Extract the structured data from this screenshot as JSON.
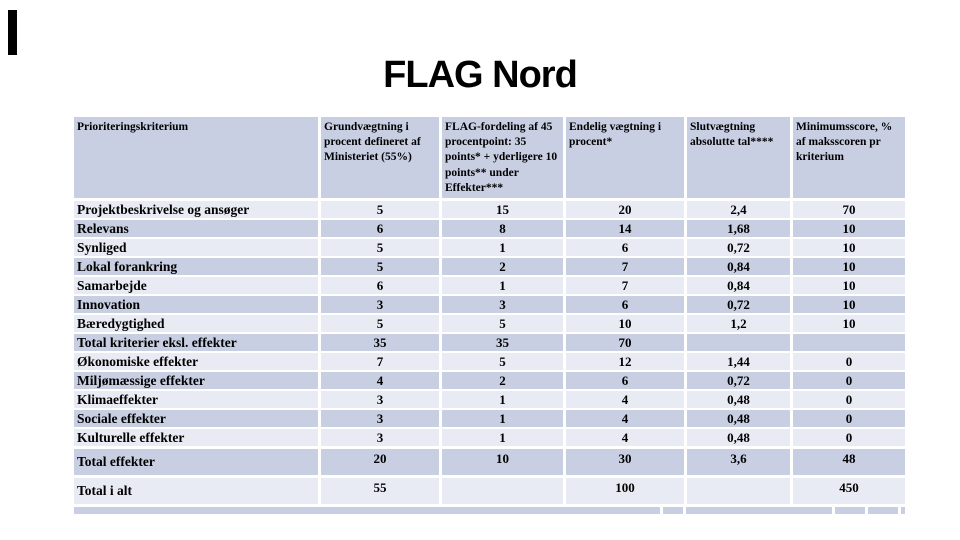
{
  "slide": {
    "title": "FLAG Nord"
  },
  "table": {
    "columns": [
      "Prioriteringskriterium",
      "Grundvægtning i procent defineret af Ministeriet (55%)",
      "FLAG-fordeling af 45 procentpoint: 35 points* + yderligere 10 points** under Effekter***",
      "Endelig vægtning i procent*",
      "Slutvægtning absolutte tal****",
      "Minimumsscore, % af maksscoren pr kriterium"
    ],
    "rows": [
      {
        "label": "Projektbeskrivelse og ansøger",
        "values": [
          "5",
          "15",
          "20",
          "2,4",
          "70"
        ]
      },
      {
        "label": "Relevans",
        "values": [
          "6",
          "8",
          "14",
          "1,68",
          "10"
        ]
      },
      {
        "label": "Synliged",
        "values": [
          "5",
          "1",
          "6",
          "0,72",
          "10"
        ]
      },
      {
        "label": "Lokal forankring",
        "values": [
          "5",
          "2",
          "7",
          "0,84",
          "10"
        ]
      },
      {
        "label": "Samarbejde",
        "values": [
          "6",
          "1",
          "7",
          "0,84",
          "10"
        ]
      },
      {
        "label": "Innovation",
        "values": [
          "3",
          "3",
          "6",
          "0,72",
          "10"
        ]
      },
      {
        "label": "Bæredygtighed",
        "values": [
          "5",
          "5",
          "10",
          "1,2",
          "10"
        ]
      },
      {
        "label": "Total kriterier eksl. effekter",
        "values": [
          "35",
          "35",
          "70",
          "",
          ""
        ]
      },
      {
        "label": "Økonomiske effekter",
        "values": [
          "7",
          "5",
          "12",
          "1,44",
          "0"
        ]
      },
      {
        "label": "Miljømæssige effekter",
        "values": [
          "4",
          "2",
          "6",
          "0,72",
          "0"
        ]
      },
      {
        "label": "Klimaeffekter",
        "values": [
          "3",
          "1",
          "4",
          "0,48",
          "0"
        ]
      },
      {
        "label": "Sociale effekter",
        "values": [
          "3",
          "1",
          "4",
          "0,48",
          "0"
        ]
      },
      {
        "label": "Kulturelle effekter",
        "values": [
          "3",
          "1",
          "4",
          "0,48",
          "0"
        ]
      }
    ],
    "total_rows": [
      {
        "label": "Total effekter",
        "values": [
          "20",
          "10",
          "30",
          "3,6",
          "48"
        ]
      },
      {
        "label": "Total i alt",
        "values": [
          "55",
          "",
          "100",
          "",
          "450"
        ]
      }
    ]
  },
  "colors": {
    "row_dark": "#c9cfe2",
    "row_light": "#e9ebf4",
    "text": "#000000"
  }
}
